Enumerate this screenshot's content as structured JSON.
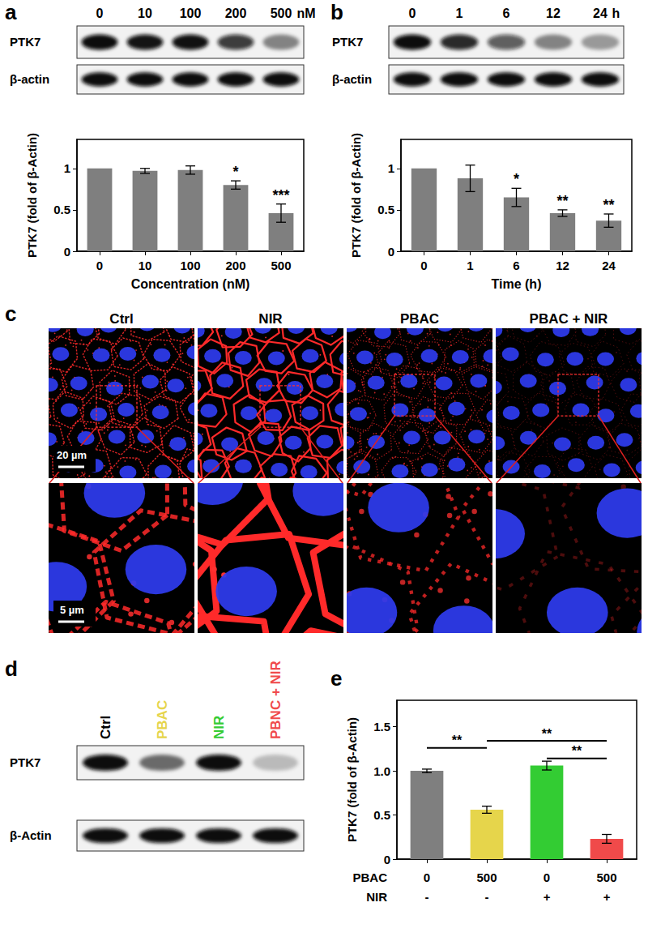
{
  "chart_data": [
    {
      "type": "bar",
      "categories": [
        "0",
        "10",
        "100",
        "200",
        "500"
      ],
      "values": [
        1,
        0.97,
        0.98,
        0.8,
        0.46
      ],
      "errors": [
        0,
        0.03,
        0.05,
        0.05,
        0.11
      ],
      "color": "#7f7f7f",
      "xlabel": "Concentration (nM)",
      "ylabel": "PTK7 (fold of β-Actin)",
      "ylim": [
        0,
        1.35
      ],
      "yticks": [
        0,
        0.5,
        1
      ],
      "grid": false,
      "annotations": [
        {
          "category": "200",
          "text": "*"
        },
        {
          "category": "500",
          "text": "***"
        }
      ]
    },
    {
      "type": "bar",
      "categories": [
        "0",
        "1",
        "6",
        "12",
        "24"
      ],
      "values": [
        1,
        0.88,
        0.65,
        0.46,
        0.37
      ],
      "errors": [
        0,
        0.16,
        0.11,
        0.04,
        0.08
      ],
      "color": "#7f7f7f",
      "xlabel": "Time (h)",
      "ylabel": "PTK7 (fold of β-Actin)",
      "ylim": [
        0,
        1.35
      ],
      "yticks": [
        0,
        0.5,
        1
      ],
      "grid": false,
      "annotations": [
        {
          "category": "6",
          "text": "*"
        },
        {
          "category": "12",
          "text": "**"
        },
        {
          "category": "24",
          "text": "**"
        }
      ]
    },
    {
      "type": "bar",
      "x_rows": [
        {
          "label": "PBAC",
          "values": [
            "0",
            "500",
            "0",
            "500"
          ]
        },
        {
          "label": "NIR",
          "values": [
            "-",
            "-",
            "+",
            "+"
          ]
        }
      ],
      "values": [
        1,
        0.56,
        1.06,
        0.23
      ],
      "errors": [
        0.02,
        0.04,
        0.05,
        0.05
      ],
      "colors": [
        "#7f7f7f",
        "#e6d54b",
        "#33cc33",
        "#f04a4a"
      ],
      "ylabel": "PTK7 (fold of β-Actin)",
      "ylim": [
        0,
        1.8
      ],
      "yticks": [
        0,
        0.5,
        {
          "value": 1,
          "label": "1.0"
        },
        1.5
      ],
      "grid": false,
      "comparisons": [
        {
          "from": 0,
          "to": 1,
          "y": 1.26,
          "text": "**"
        },
        {
          "from": 1,
          "to": 3,
          "y": 1.34,
          "text": "**"
        },
        {
          "from": 2,
          "to": 3,
          "y": 1.14,
          "text": "**"
        }
      ]
    }
  ],
  "figure": {
    "a": {
      "letter": "a",
      "lanes": [
        "0",
        "10",
        "100",
        "200",
        "500"
      ],
      "unit": "nM",
      "rows": [
        "PTK7",
        "β-actin"
      ]
    },
    "b": {
      "letter": "b",
      "lanes": [
        "0",
        "1",
        "6",
        "12",
        "24"
      ],
      "unit": "h",
      "rows": [
        "PTK7",
        "β-actin"
      ]
    },
    "c": {
      "letter": "c",
      "conditions": [
        "Ctrl",
        "NIR",
        "PBAC",
        "PBAC + NIR"
      ],
      "scale_bars": [
        "20 µm",
        "5 µm"
      ]
    },
    "d": {
      "letter": "d",
      "lanes": [
        "Ctrl",
        "PBAC",
        "NIR",
        "PBNC + NIR"
      ],
      "lane_colors": [
        "#000000",
        "#e6d54b",
        "#33cc33",
        "#f04a4a"
      ],
      "rows": [
        "PTK7",
        "β-Actin"
      ]
    },
    "e": {
      "letter": "e"
    }
  }
}
